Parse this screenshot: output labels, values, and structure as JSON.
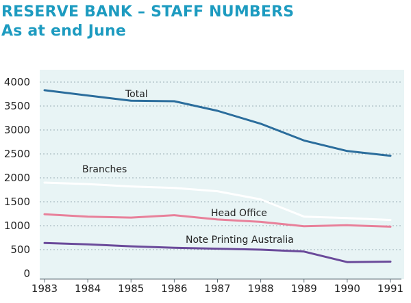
{
  "chart_data": {
    "type": "line",
    "title": "RESERVE BANK – STAFF NUMBERS",
    "subtitle": "As at end June",
    "xlabel": "",
    "ylabel": "",
    "x": [
      "1983",
      "1984",
      "1985",
      "1986",
      "1987",
      "1988",
      "1989",
      "1990",
      "1991"
    ],
    "ylim": [
      0,
      4000
    ],
    "yticks": [
      0,
      500,
      1000,
      1500,
      2000,
      2500,
      3000,
      3500,
      4000
    ],
    "grid": true,
    "legend": "inline labels",
    "series": [
      {
        "name": "Total",
        "color": "#2b6d9c",
        "values": [
          3830,
          3720,
          3610,
          3600,
          3400,
          3130,
          2780,
          2560,
          2460
        ]
      },
      {
        "name": "Branches",
        "color": "#ffffff",
        "values": [
          1900,
          1870,
          1820,
          1790,
          1720,
          1550,
          1190,
          1160,
          1120
        ]
      },
      {
        "name": "Head Office",
        "color": "#e8809a",
        "values": [
          1240,
          1190,
          1170,
          1220,
          1130,
          1080,
          990,
          1010,
          980
        ]
      },
      {
        "name": "Note Printing Australia",
        "color": "#6a4a9a",
        "values": [
          640,
          610,
          570,
          540,
          520,
          500,
          460,
          240,
          250
        ]
      }
    ]
  },
  "colors": {
    "title": "#1d9bc0",
    "plot_background": "#e8f4f5",
    "grid": "#9aaeb5",
    "axis_text": "#222222"
  }
}
